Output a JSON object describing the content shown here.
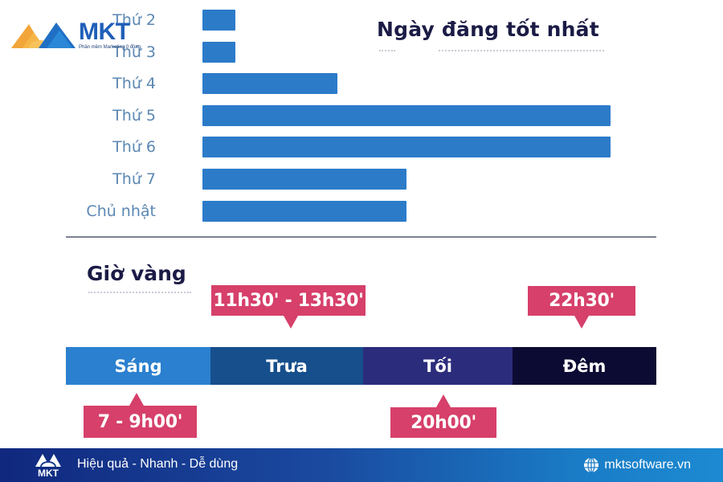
{
  "brand": {
    "name": "MKT",
    "tagline_small": "Phần mềm Marketing 0 đồng"
  },
  "chart_data": {
    "type": "bar",
    "orientation": "horizontal",
    "title": "Ngày đăng tốt nhất",
    "categories": [
      "Thứ 2",
      "Thứ 3",
      "Thứ 4",
      "Thứ 5",
      "Thứ 6",
      "Thứ 7",
      "Chủ nhật"
    ],
    "values": [
      8,
      8,
      33,
      100,
      100,
      50,
      50
    ],
    "value_unit": "relative (% of max)",
    "xlabel": "",
    "ylabel": "",
    "xlim": [
      0,
      100
    ],
    "grid": false,
    "legend": null,
    "bar_color": "#2c7bc9"
  },
  "golden_hours": {
    "title": "Giờ vàng",
    "segments": [
      {
        "label": "Sáng",
        "color": "#2b80cf"
      },
      {
        "label": "Trưa",
        "color": "#164f8c"
      },
      {
        "label": "Tối",
        "color": "#2c2c7c"
      },
      {
        "label": "Đêm",
        "color": "#0b0b33"
      }
    ],
    "callouts": [
      {
        "text": "11h30' - 13h30'",
        "segment": "Trưa",
        "position": "above"
      },
      {
        "text": "22h30'",
        "segment": "Đêm",
        "position": "above"
      },
      {
        "text": "7 - 9h00'",
        "segment": "Sáng",
        "position": "below"
      },
      {
        "text": "20h00'",
        "segment": "Tối",
        "position": "below"
      }
    ],
    "callout_color": "#d6406a"
  },
  "footer": {
    "slogan": "Hiệu quả - Nhanh - Dễ dùng",
    "website": "mktsoftware.vn",
    "logo_text": "MKT"
  },
  "colors": {
    "title_text": "#1b1b46",
    "day_label": "#5b87b3",
    "separator": "#7d8191"
  }
}
